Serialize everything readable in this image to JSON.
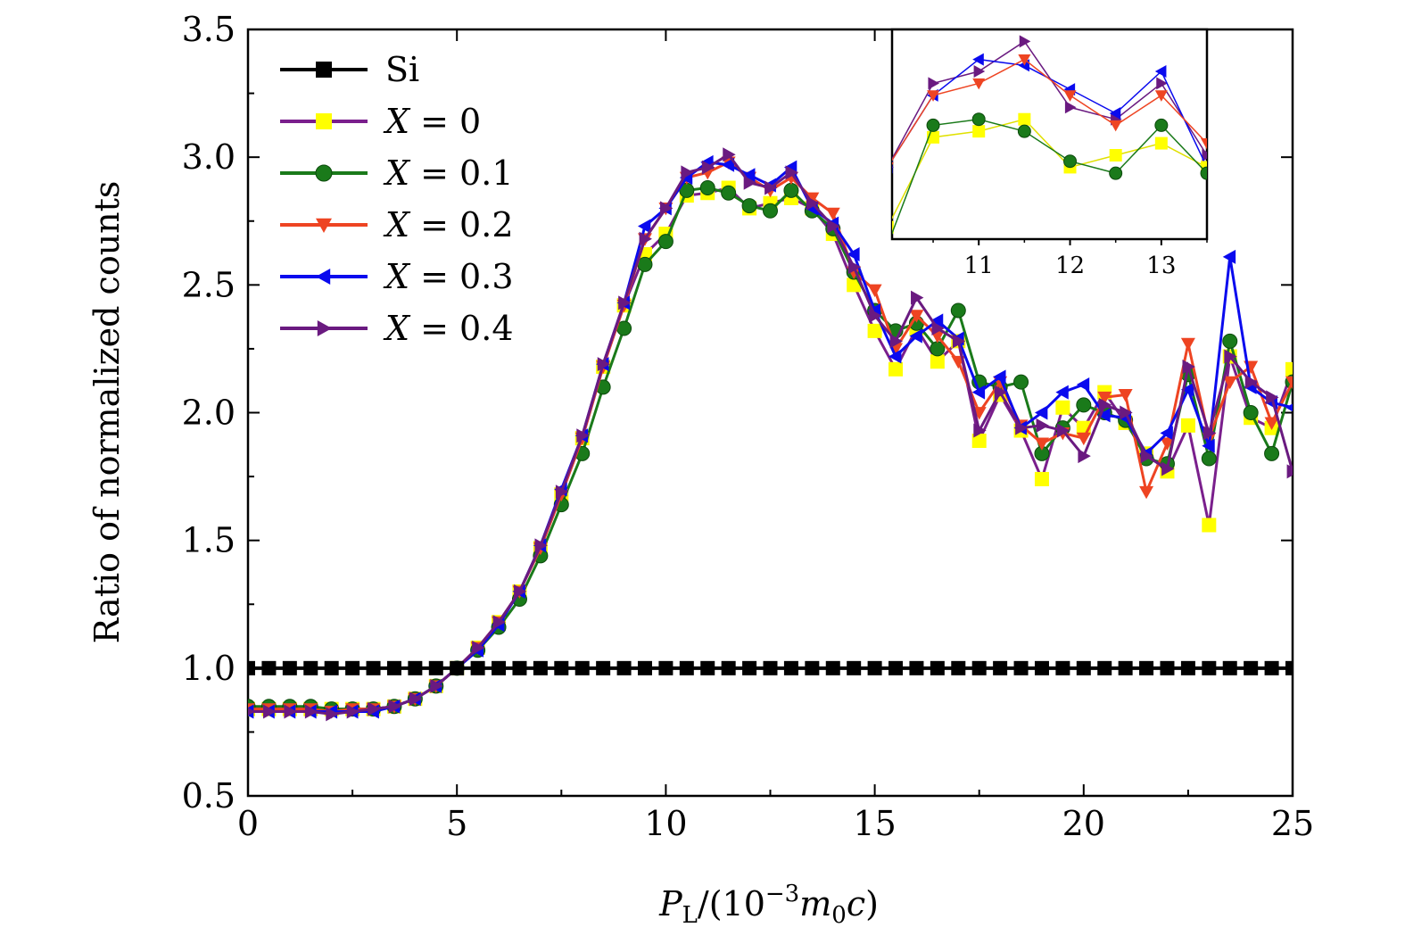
{
  "chart_data": [
    {
      "type": "line",
      "xlabel": "P_L/(10^{-3}m_0c)",
      "ylabel": "Ratio of normalized counts",
      "xlim": [
        0,
        25
      ],
      "ylim": [
        0.5,
        3.5
      ],
      "xticks": [
        "0",
        "5",
        "10",
        "15",
        "20",
        "25"
      ],
      "yticks": [
        "0.5",
        "1.0",
        "1.5",
        "2.0",
        "2.5",
        "3.0",
        "3.5"
      ],
      "grid": false,
      "legend_placement": "top-left",
      "x": [
        0,
        0.5,
        1,
        1.5,
        2,
        2.5,
        3,
        3.5,
        4,
        4.5,
        5,
        5.5,
        6,
        6.5,
        7,
        7.5,
        8,
        8.5,
        9,
        9.5,
        10,
        10.5,
        11,
        11.5,
        12,
        12.5,
        13,
        13.5,
        14,
        14.5,
        15,
        15.5,
        16,
        16.5,
        17,
        17.5,
        18,
        18.5,
        19,
        19.5,
        20,
        20.5,
        21,
        21.5,
        22,
        22.5,
        23,
        23.5,
        24,
        24.5,
        25
      ],
      "series": [
        {
          "name": "Si",
          "color": "#000000",
          "marker": "square",
          "values": [
            1,
            1,
            1,
            1,
            1,
            1,
            1,
            1,
            1,
            1,
            1,
            1,
            1,
            1,
            1,
            1,
            1,
            1,
            1,
            1,
            1,
            1,
            1,
            1,
            1,
            1,
            1,
            1,
            1,
            1,
            1,
            1,
            1,
            1,
            1,
            1,
            1,
            1,
            1,
            1,
            1,
            1,
            1,
            1,
            1,
            1,
            1,
            1,
            1,
            1,
            1
          ]
        },
        {
          "name": "X = 0",
          "color": "#7a1f8c",
          "marker_color": "#ffff00",
          "marker": "square",
          "values": [
            0.84,
            0.84,
            0.84,
            0.84,
            0.84,
            0.84,
            0.84,
            0.85,
            0.88,
            0.93,
            1.0,
            1.08,
            1.18,
            1.3,
            1.47,
            1.68,
            1.9,
            2.18,
            2.42,
            2.62,
            2.7,
            2.85,
            2.86,
            2.88,
            2.8,
            2.82,
            2.84,
            2.8,
            2.7,
            2.5,
            2.32,
            2.17,
            2.33,
            2.2,
            2.28,
            1.89,
            2.07,
            1.93,
            1.74,
            2.02,
            1.94,
            2.08,
            1.96,
            1.84,
            1.77,
            1.95,
            1.56,
            2.22,
            1.98,
            1.94,
            2.17
          ]
        },
        {
          "name": "X = 0.1",
          "color": "#1a7a1a",
          "marker": "circle",
          "values": [
            0.85,
            0.85,
            0.85,
            0.85,
            0.84,
            0.84,
            0.84,
            0.85,
            0.88,
            0.93,
            1.0,
            1.07,
            1.16,
            1.27,
            1.44,
            1.64,
            1.84,
            2.1,
            2.33,
            2.58,
            2.67,
            2.87,
            2.88,
            2.86,
            2.81,
            2.79,
            2.87,
            2.79,
            2.72,
            2.55,
            2.4,
            2.32,
            2.35,
            2.25,
            2.4,
            2.12,
            2.1,
            2.12,
            1.84,
            1.94,
            2.03,
            2.0,
            1.97,
            1.82,
            1.8,
            2.15,
            1.82,
            2.28,
            2.0,
            1.84,
            2.12
          ]
        },
        {
          "name": "X = 0.2",
          "color": "#ee4422",
          "marker": "triangle-down",
          "values": [
            0.84,
            0.84,
            0.84,
            0.84,
            0.83,
            0.84,
            0.84,
            0.85,
            0.88,
            0.93,
            1.0,
            1.08,
            1.18,
            1.3,
            1.47,
            1.68,
            1.9,
            2.18,
            2.42,
            2.68,
            2.8,
            2.92,
            2.94,
            2.98,
            2.92,
            2.87,
            2.92,
            2.84,
            2.78,
            2.55,
            2.48,
            2.25,
            2.38,
            2.3,
            2.2,
            2.0,
            2.12,
            1.95,
            1.88,
            1.92,
            1.9,
            2.06,
            2.07,
            1.69,
            1.88,
            2.27,
            1.9,
            2.12,
            2.18,
            1.96,
            2.12
          ]
        },
        {
          "name": "X = 0.3",
          "color": "#0a0aee",
          "marker": "triangle-left",
          "values": [
            0.83,
            0.83,
            0.83,
            0.83,
            0.83,
            0.83,
            0.83,
            0.85,
            0.88,
            0.93,
            1.0,
            1.07,
            1.17,
            1.3,
            1.48,
            1.7,
            1.91,
            2.19,
            2.43,
            2.73,
            2.8,
            2.92,
            2.98,
            2.97,
            2.93,
            2.89,
            2.96,
            2.8,
            2.74,
            2.62,
            2.4,
            2.22,
            2.3,
            2.36,
            2.29,
            2.08,
            2.14,
            1.94,
            2.0,
            2.08,
            2.11,
            1.99,
            1.98,
            1.84,
            1.92,
            2.09,
            1.87,
            2.61,
            2.1,
            2.04,
            2.02
          ]
        },
        {
          "name": "X = 0.4",
          "color": "#6a1a80",
          "marker": "triangle-right",
          "values": [
            0.83,
            0.83,
            0.83,
            0.83,
            0.82,
            0.83,
            0.84,
            0.85,
            0.88,
            0.93,
            1.0,
            1.08,
            1.18,
            1.3,
            1.48,
            1.69,
            1.91,
            2.19,
            2.43,
            2.68,
            2.8,
            2.94,
            2.96,
            3.01,
            2.9,
            2.88,
            2.94,
            2.82,
            2.73,
            2.57,
            2.38,
            2.28,
            2.45,
            2.33,
            2.28,
            1.93,
            2.08,
            1.94,
            1.95,
            1.93,
            1.83,
            2.03,
            2.0,
            1.83,
            1.78,
            2.18,
            1.92,
            2.22,
            2.12,
            2.06,
            1.77
          ]
        }
      ]
    },
    {
      "type": "line",
      "role": "inset",
      "xlim": [
        10.05,
        13.5
      ],
      "ylim": [
        2.68,
        3.03
      ],
      "xticks": [
        "11",
        "12",
        "13"
      ],
      "x": [
        10,
        10.5,
        11,
        11.5,
        12,
        12.5,
        13,
        13.5
      ],
      "series": [
        {
          "name": "X = 0",
          "color": "#e0e000",
          "marker_color": "#ffff00",
          "marker": "square",
          "values": [
            2.7,
            2.85,
            2.86,
            2.88,
            2.8,
            2.82,
            2.84,
            2.8
          ]
        },
        {
          "name": "X = 0.1",
          "color": "#1a7a1a",
          "marker": "circle",
          "values": [
            2.67,
            2.87,
            2.88,
            2.86,
            2.81,
            2.79,
            2.87,
            2.79
          ]
        },
        {
          "name": "X = 0.2",
          "color": "#ee4422",
          "marker": "triangle-down",
          "values": [
            2.8,
            2.92,
            2.94,
            2.98,
            2.92,
            2.87,
            2.92,
            2.84
          ]
        },
        {
          "name": "X = 0.3",
          "color": "#0a0aee",
          "marker": "triangle-left",
          "values": [
            2.8,
            2.92,
            2.98,
            2.97,
            2.93,
            2.89,
            2.96,
            2.8
          ]
        },
        {
          "name": "X = 0.4",
          "color": "#6a1a80",
          "marker": "triangle-right",
          "values": [
            2.8,
            2.94,
            2.96,
            3.01,
            2.9,
            2.88,
            2.94,
            2.82
          ]
        }
      ]
    }
  ]
}
